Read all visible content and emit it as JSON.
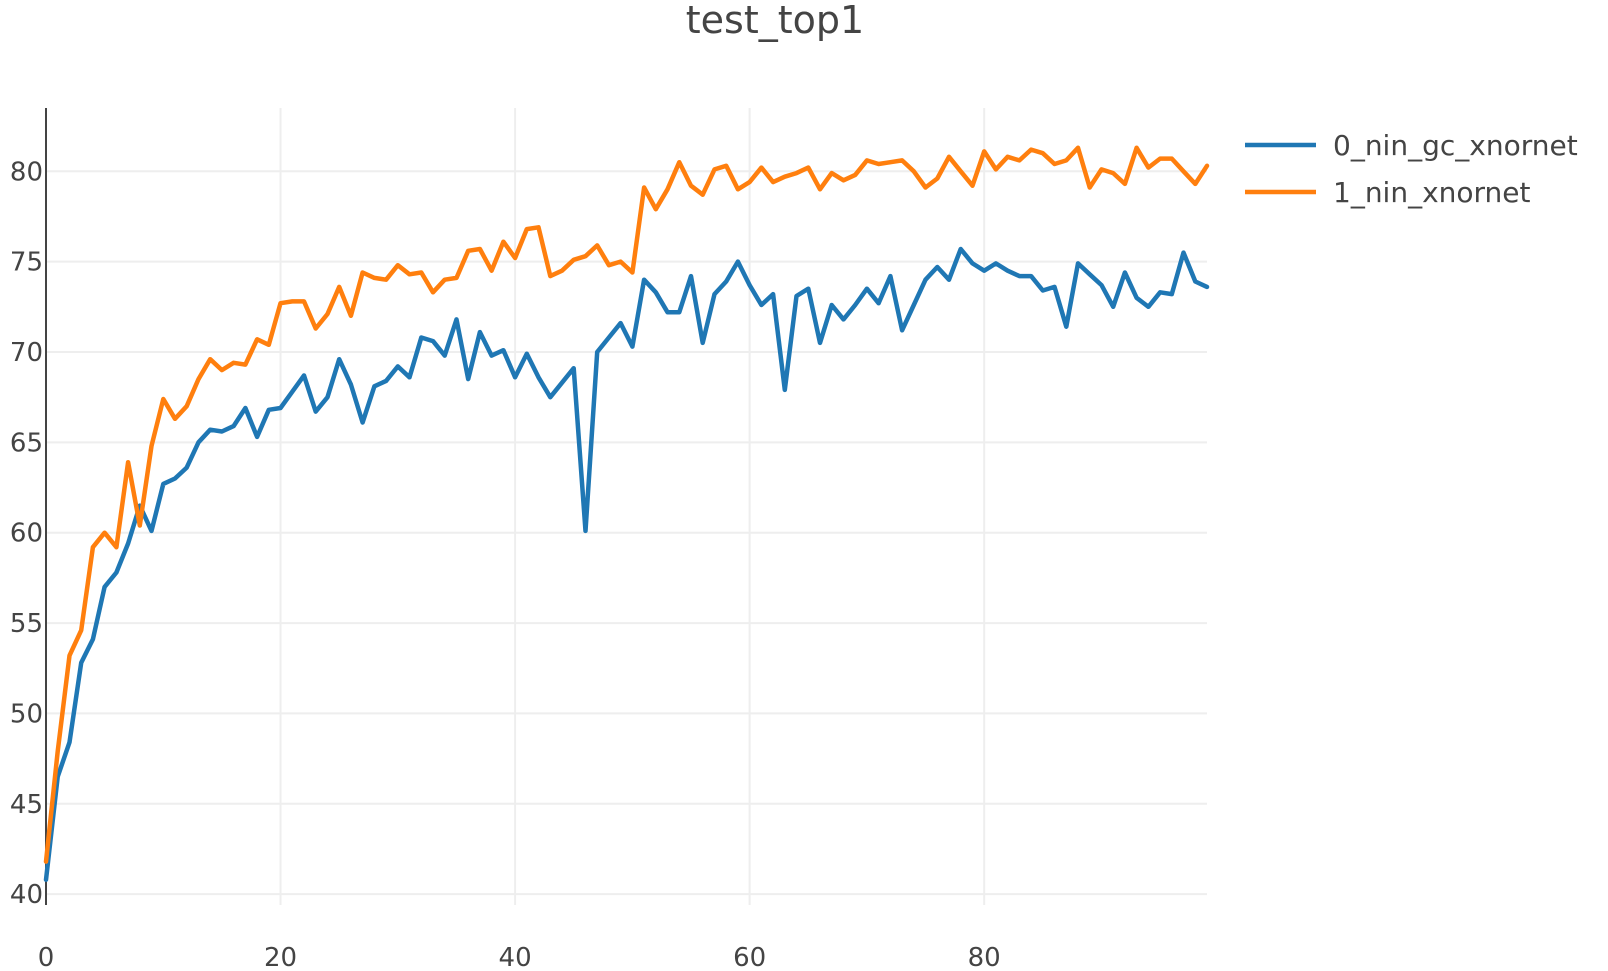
{
  "chart_data": {
    "type": "line",
    "title": "test_top1",
    "xlabel": "",
    "ylabel": "",
    "xlim": [
      0,
      99
    ],
    "ylim": [
      39.4,
      83.5
    ],
    "xticks": [
      0,
      20,
      40,
      60,
      80
    ],
    "yticks": [
      40,
      45,
      50,
      55,
      60,
      65,
      70,
      75,
      80
    ],
    "grid": true,
    "legend_position": "top-right",
    "series": [
      {
        "name": "0_nin_gc_xnornet",
        "color": "#1f77b4",
        "x": [
          0,
          1,
          2,
          3,
          4,
          5,
          6,
          7,
          8,
          9,
          10,
          11,
          12,
          13,
          14,
          15,
          16,
          17,
          18,
          19,
          20,
          21,
          22,
          23,
          24,
          25,
          26,
          27,
          28,
          29,
          30,
          31,
          32,
          33,
          34,
          35,
          36,
          37,
          38,
          39,
          40,
          41,
          42,
          43,
          44,
          45,
          46,
          47,
          48,
          49,
          50,
          51,
          52,
          53,
          54,
          55,
          56,
          57,
          58,
          59,
          60,
          61,
          62,
          63,
          64,
          65,
          66,
          67,
          68,
          69,
          70,
          71,
          72,
          73,
          74,
          75,
          76,
          77,
          78,
          79,
          80,
          81,
          82,
          83,
          84,
          85,
          86,
          87,
          88,
          89,
          90,
          91,
          92,
          93,
          94,
          95,
          96,
          97,
          98,
          99
        ],
        "values": [
          40.8,
          46.5,
          48.4,
          52.8,
          54.1,
          57.0,
          57.8,
          59.4,
          61.5,
          60.1,
          62.7,
          63.0,
          63.6,
          65.0,
          65.7,
          65.6,
          65.9,
          66.9,
          65.3,
          66.8,
          66.9,
          67.8,
          68.7,
          66.7,
          67.5,
          69.6,
          68.2,
          66.1,
          68.1,
          68.4,
          69.2,
          68.6,
          70.8,
          70.6,
          69.8,
          71.8,
          68.5,
          71.1,
          69.8,
          70.1,
          68.6,
          69.9,
          68.6,
          67.5,
          68.3,
          69.1,
          60.1,
          70.0,
          70.8,
          71.6,
          70.3,
          74.0,
          73.3,
          72.2,
          72.2,
          74.2,
          70.5,
          73.2,
          73.9,
          75.0,
          73.7,
          72.6,
          73.2,
          67.9,
          73.1,
          73.5,
          70.5,
          72.6,
          71.8,
          72.6,
          73.5,
          72.7,
          74.2,
          71.2,
          72.6,
          74.0,
          74.7,
          74.0,
          75.7,
          74.9,
          74.5,
          74.9,
          74.5,
          74.2,
          74.2,
          73.4,
          73.6,
          71.4,
          74.9,
          74.3,
          73.7,
          72.5,
          74.4,
          73.0,
          72.5,
          73.3,
          73.2,
          75.5,
          73.9,
          73.6
        ]
      },
      {
        "name": "1_nin_xnornet",
        "color": "#ff7f0e",
        "x": [
          0,
          1,
          2,
          3,
          4,
          5,
          6,
          7,
          8,
          9,
          10,
          11,
          12,
          13,
          14,
          15,
          16,
          17,
          18,
          19,
          20,
          21,
          22,
          23,
          24,
          25,
          26,
          27,
          28,
          29,
          30,
          31,
          32,
          33,
          34,
          35,
          36,
          37,
          38,
          39,
          40,
          41,
          42,
          43,
          44,
          45,
          46,
          47,
          48,
          49,
          50,
          51,
          52,
          53,
          54,
          55,
          56,
          57,
          58,
          59,
          60,
          61,
          62,
          63,
          64,
          65,
          66,
          67,
          68,
          69,
          70,
          71,
          72,
          73,
          74,
          75,
          76,
          77,
          78,
          79,
          80,
          81,
          82,
          83,
          84,
          85,
          86,
          87,
          88,
          89,
          90,
          91,
          92,
          93,
          94,
          95,
          96,
          97,
          98,
          99
        ],
        "values": [
          41.8,
          47.9,
          53.2,
          54.6,
          59.2,
          60.0,
          59.2,
          63.9,
          60.4,
          64.8,
          67.4,
          66.3,
          67.0,
          68.5,
          69.6,
          69.0,
          69.4,
          69.3,
          70.7,
          70.4,
          72.7,
          72.8,
          72.8,
          71.3,
          72.1,
          73.6,
          72.0,
          74.4,
          74.1,
          74.0,
          74.8,
          74.3,
          74.4,
          73.3,
          74.0,
          74.1,
          75.6,
          75.7,
          74.5,
          76.1,
          75.2,
          76.8,
          76.9,
          74.2,
          74.5,
          75.1,
          75.3,
          75.9,
          74.8,
          75.0,
          74.4,
          79.1,
          77.9,
          79.0,
          80.5,
          79.2,
          78.7,
          80.1,
          80.3,
          79.0,
          79.4,
          80.2,
          79.4,
          79.7,
          79.9,
          80.2,
          79.0,
          79.9,
          79.5,
          79.8,
          80.6,
          80.4,
          80.5,
          80.6,
          80.0,
          79.1,
          79.6,
          80.8,
          80.0,
          79.2,
          81.1,
          80.1,
          80.8,
          80.6,
          81.2,
          81.0,
          80.4,
          80.6,
          81.3,
          79.1,
          80.1,
          79.9,
          79.3,
          81.3,
          80.2,
          80.7,
          80.7,
          80.0,
          79.3,
          80.3
        ]
      }
    ]
  }
}
